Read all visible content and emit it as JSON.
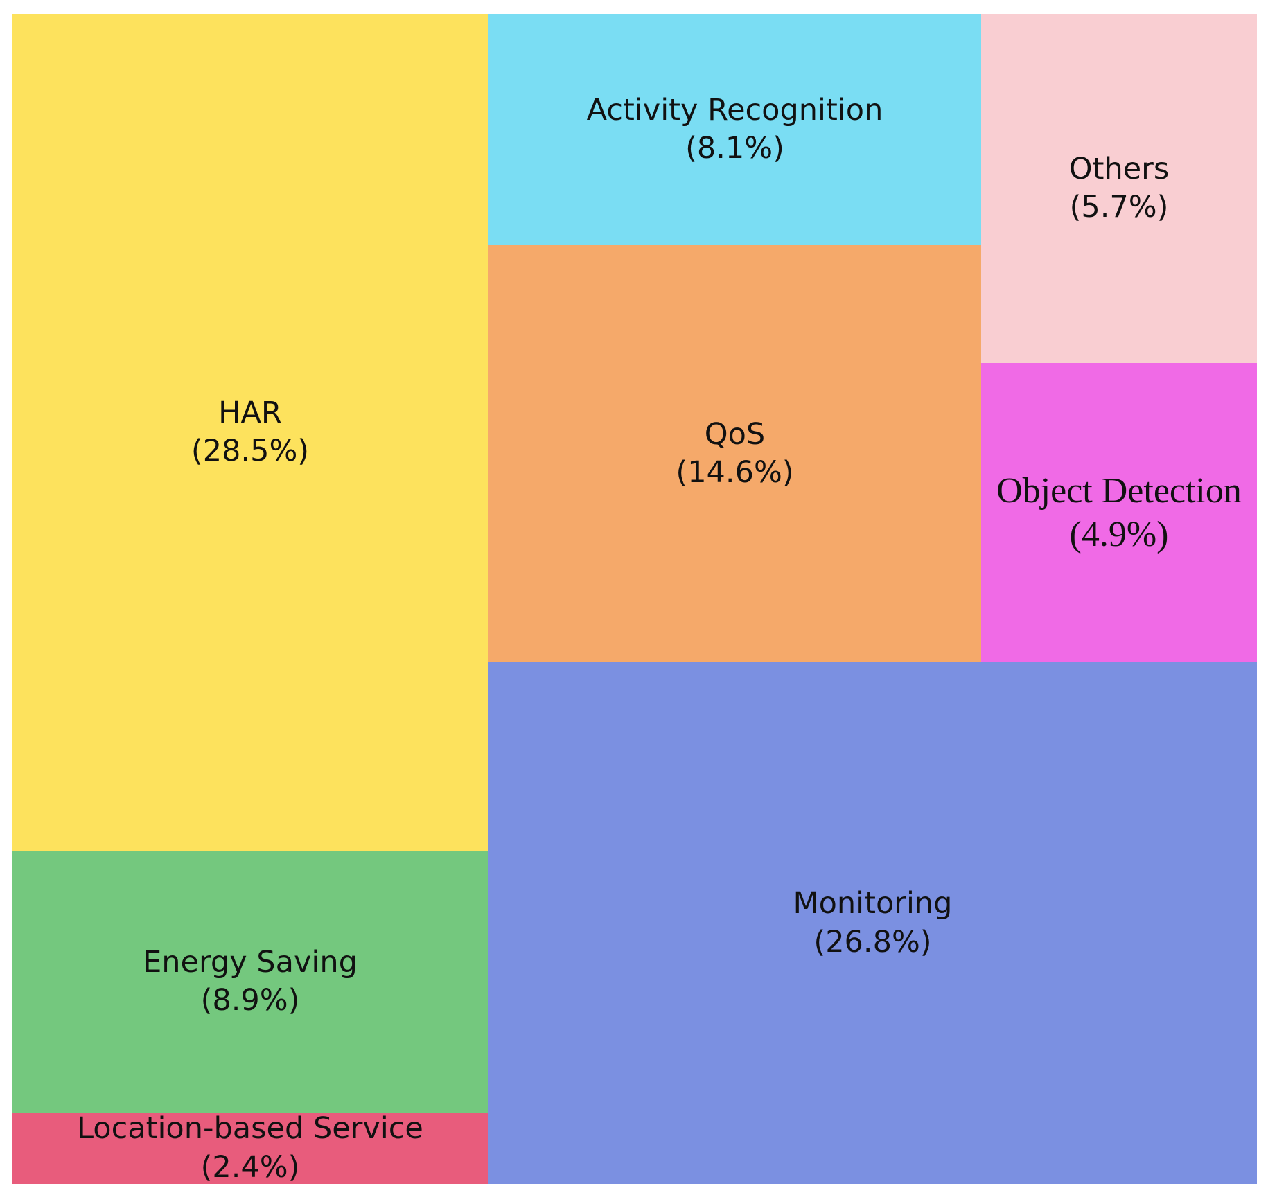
{
  "chart_data": {
    "type": "treemap",
    "title": "",
    "legend": "none",
    "background": "#ffffff",
    "text_color": "#111111",
    "categories": [
      "HAR",
      "Energy Saving",
      "Location-based Service",
      "Activity Recognition",
      "QoS",
      "Others",
      "Object Detection",
      "Monitoring"
    ],
    "values": [
      28.5,
      8.9,
      2.4,
      8.1,
      14.6,
      5.7,
      4.9,
      26.8
    ],
    "items": [
      {
        "label": "HAR",
        "value_pct": 28.5,
        "pct_label": "(28.5%)",
        "color": "#FDE25D"
      },
      {
        "label": "Energy Saving",
        "value_pct": 8.9,
        "pct_label": "(8.9%)",
        "color": "#74C87E"
      },
      {
        "label": "Location-based Service",
        "value_pct": 2.4,
        "pct_label": "(2.4%)",
        "color": "#E85C7C"
      },
      {
        "label": "Activity Recognition",
        "value_pct": 8.1,
        "pct_label": "(8.1%)",
        "color": "#7ADDF3"
      },
      {
        "label": "QoS",
        "value_pct": 14.6,
        "pct_label": "(14.6%)",
        "color": "#F5A96A"
      },
      {
        "label": "Others",
        "value_pct": 5.7,
        "pct_label": "(5.7%)",
        "color": "#F9CED2"
      },
      {
        "label": "Object Detection",
        "value_pct": 4.9,
        "pct_label": "(4.9%)",
        "color": "#F06AE6"
      },
      {
        "label": "Monitoring",
        "value_pct": 26.8,
        "pct_label": "(26.8%)",
        "color": "#7B90E1"
      }
    ]
  }
}
